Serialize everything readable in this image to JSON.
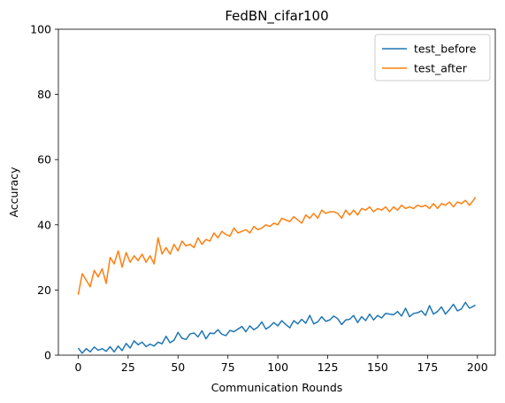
{
  "chart_data": {
    "type": "line",
    "title": "FedBN_cifar100",
    "xlabel": "Communication Rounds",
    "ylabel": "Accuracy",
    "xlim": [
      -9.95,
      208.95
    ],
    "ylim": [
      0,
      100
    ],
    "xticks": [
      0,
      25,
      50,
      75,
      100,
      125,
      150,
      175,
      200
    ],
    "yticks": [
      0,
      20,
      40,
      60,
      80,
      100
    ],
    "grid": false,
    "legend_position": "top-right",
    "series": [
      {
        "name": "test_before",
        "color": "#1f77b4",
        "x": [
          0,
          2,
          4,
          6,
          8,
          10,
          12,
          14,
          16,
          18,
          20,
          22,
          24,
          26,
          28,
          30,
          32,
          34,
          36,
          38,
          40,
          42,
          44,
          46,
          48,
          50,
          52,
          54,
          56,
          58,
          60,
          62,
          64,
          66,
          68,
          70,
          72,
          74,
          76,
          78,
          80,
          82,
          84,
          86,
          88,
          90,
          92,
          94,
          96,
          98,
          100,
          102,
          104,
          106,
          108,
          110,
          112,
          114,
          116,
          118,
          120,
          122,
          124,
          126,
          128,
          130,
          132,
          134,
          136,
          138,
          140,
          142,
          144,
          146,
          148,
          150,
          152,
          154,
          156,
          158,
          160,
          162,
          164,
          166,
          168,
          170,
          172,
          174,
          176,
          178,
          180,
          182,
          184,
          186,
          188,
          190,
          192,
          194,
          196,
          198,
          199
        ],
        "values": [
          2.2,
          0.6,
          2.0,
          1.0,
          2.5,
          1.5,
          2.0,
          1.2,
          2.6,
          1.0,
          2.8,
          1.4,
          3.6,
          2.2,
          4.4,
          3.2,
          4.0,
          2.6,
          3.4,
          2.8,
          4.0,
          3.5,
          5.8,
          3.8,
          4.6,
          7.0,
          5.2,
          4.8,
          6.5,
          6.8,
          5.6,
          7.5,
          5.0,
          6.8,
          6.6,
          7.8,
          6.4,
          6.0,
          7.6,
          7.2,
          8.0,
          8.8,
          7.2,
          9.0,
          7.8,
          8.6,
          10.2,
          8.0,
          8.8,
          10.0,
          9.0,
          10.6,
          9.4,
          8.4,
          10.6,
          9.6,
          11.0,
          9.8,
          12.2,
          9.6,
          10.2,
          11.8,
          10.4,
          10.8,
          12.0,
          11.2,
          9.4,
          10.8,
          11.0,
          12.2,
          10.0,
          11.8,
          10.6,
          12.6,
          10.8,
          12.2,
          11.4,
          12.8,
          12.6,
          12.4,
          13.4,
          12.0,
          14.4,
          11.8,
          12.8,
          13.0,
          13.6,
          12.2,
          15.2,
          12.6,
          13.4,
          14.8,
          12.6,
          14.0,
          15.6,
          13.6,
          14.2,
          16.2,
          14.4,
          15.0,
          15.4
        ]
      },
      {
        "name": "test_after",
        "color": "#ff7f0e",
        "x": [
          0,
          2,
          4,
          6,
          8,
          10,
          12,
          14,
          16,
          18,
          20,
          22,
          24,
          26,
          28,
          30,
          32,
          34,
          36,
          38,
          40,
          42,
          44,
          46,
          48,
          50,
          52,
          54,
          56,
          58,
          60,
          62,
          64,
          66,
          68,
          70,
          72,
          74,
          76,
          78,
          80,
          82,
          84,
          86,
          88,
          90,
          92,
          94,
          96,
          98,
          100,
          102,
          104,
          106,
          108,
          110,
          112,
          114,
          116,
          118,
          120,
          122,
          124,
          126,
          128,
          130,
          132,
          134,
          136,
          138,
          140,
          142,
          144,
          146,
          148,
          150,
          152,
          154,
          156,
          158,
          160,
          162,
          164,
          166,
          168,
          170,
          172,
          174,
          176,
          178,
          180,
          182,
          184,
          186,
          188,
          190,
          192,
          194,
          196,
          198,
          199
        ],
        "values": [
          18.5,
          25.0,
          23.0,
          21.0,
          26.0,
          24.0,
          26.5,
          22.0,
          30.0,
          28.0,
          32.0,
          27.0,
          31.5,
          28.5,
          30.5,
          29.0,
          31.0,
          28.5,
          30.5,
          28.0,
          36.0,
          31.0,
          33.0,
          31.0,
          34.0,
          32.0,
          35.0,
          33.5,
          34.0,
          33.0,
          36.0,
          34.0,
          35.5,
          35.0,
          37.5,
          36.0,
          38.0,
          37.0,
          36.5,
          39.0,
          37.5,
          38.0,
          38.5,
          37.5,
          39.5,
          38.5,
          39.0,
          40.0,
          39.5,
          40.5,
          40.0,
          42.0,
          41.5,
          41.0,
          42.5,
          41.5,
          40.5,
          43.0,
          42.0,
          43.5,
          42.0,
          44.5,
          43.5,
          44.0,
          44.0,
          43.5,
          42.0,
          44.5,
          43.0,
          44.5,
          43.0,
          45.0,
          44.5,
          45.5,
          44.0,
          45.0,
          44.5,
          45.5,
          44.0,
          45.5,
          44.5,
          46.0,
          45.0,
          45.5,
          45.0,
          46.0,
          45.5,
          46.0,
          45.0,
          46.5,
          45.0,
          46.5,
          46.0,
          47.0,
          45.5,
          47.0,
          46.5,
          47.5,
          46.0,
          47.5,
          48.5
        ]
      }
    ]
  }
}
